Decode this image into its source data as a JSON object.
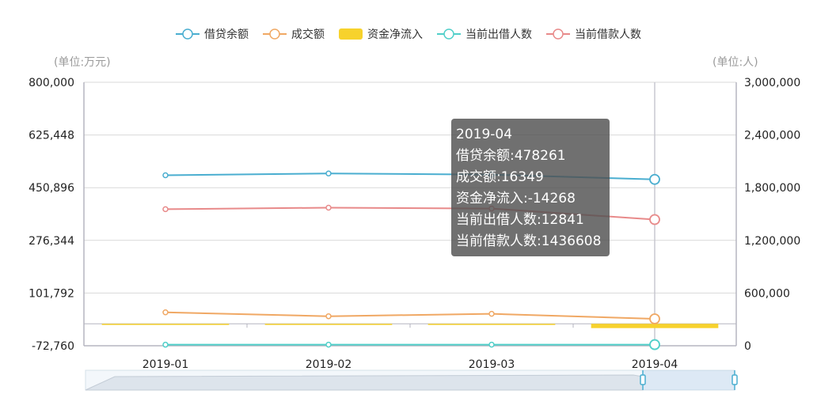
{
  "chart_data": {
    "type": "line",
    "categories": [
      "2019-01",
      "2019-02",
      "2019-03",
      "2019-04"
    ],
    "legend": [
      "借贷余额",
      "成交额",
      "资金净流入",
      "当前出借人数",
      "当前借款人数"
    ],
    "left_unit": "(单位:万元)",
    "right_unit": "(单位:人)",
    "left_axis": {
      "min": -72760,
      "max": 800000,
      "ticks": [
        "800,000",
        "625,448",
        "450,896",
        "276,344",
        "101,792",
        "-72,760"
      ]
    },
    "right_axis": {
      "min": 0,
      "max": 3000000,
      "ticks": [
        "3,000,000",
        "2,400,000",
        "1,800,000",
        "1,200,000",
        "600,000",
        "0"
      ]
    },
    "series": [
      {
        "name": "借贷余额",
        "type": "line",
        "axis": "left",
        "color": "#4aaed0",
        "values": [
          492000,
          498000,
          494000,
          478261
        ]
      },
      {
        "name": "成交额",
        "type": "line",
        "axis": "left",
        "color": "#f0a864",
        "values": [
          38000,
          25000,
          33000,
          16349
        ]
      },
      {
        "name": "资金净流入",
        "type": "bar",
        "axis": "left",
        "color": "#f7d22c",
        "values": [
          -1500,
          -1500,
          -1500,
          -14268
        ]
      },
      {
        "name": "当前出借人数",
        "type": "line",
        "axis": "right",
        "color": "#50cfc9",
        "values": [
          12000,
          12300,
          12400,
          12841
        ]
      },
      {
        "name": "当前借款人数",
        "type": "line",
        "axis": "right",
        "color": "#e88a8a",
        "values": [
          1555000,
          1572000,
          1562000,
          1436608
        ]
      }
    ],
    "tooltip": {
      "title": "2019-04",
      "lines": [
        "借贷余额:478261",
        "成交额:16349",
        "资金净流入:-14268",
        "当前出借人数:12841",
        "当前借款人数:1436608"
      ]
    },
    "grid": true,
    "legend_position": "top-center"
  }
}
